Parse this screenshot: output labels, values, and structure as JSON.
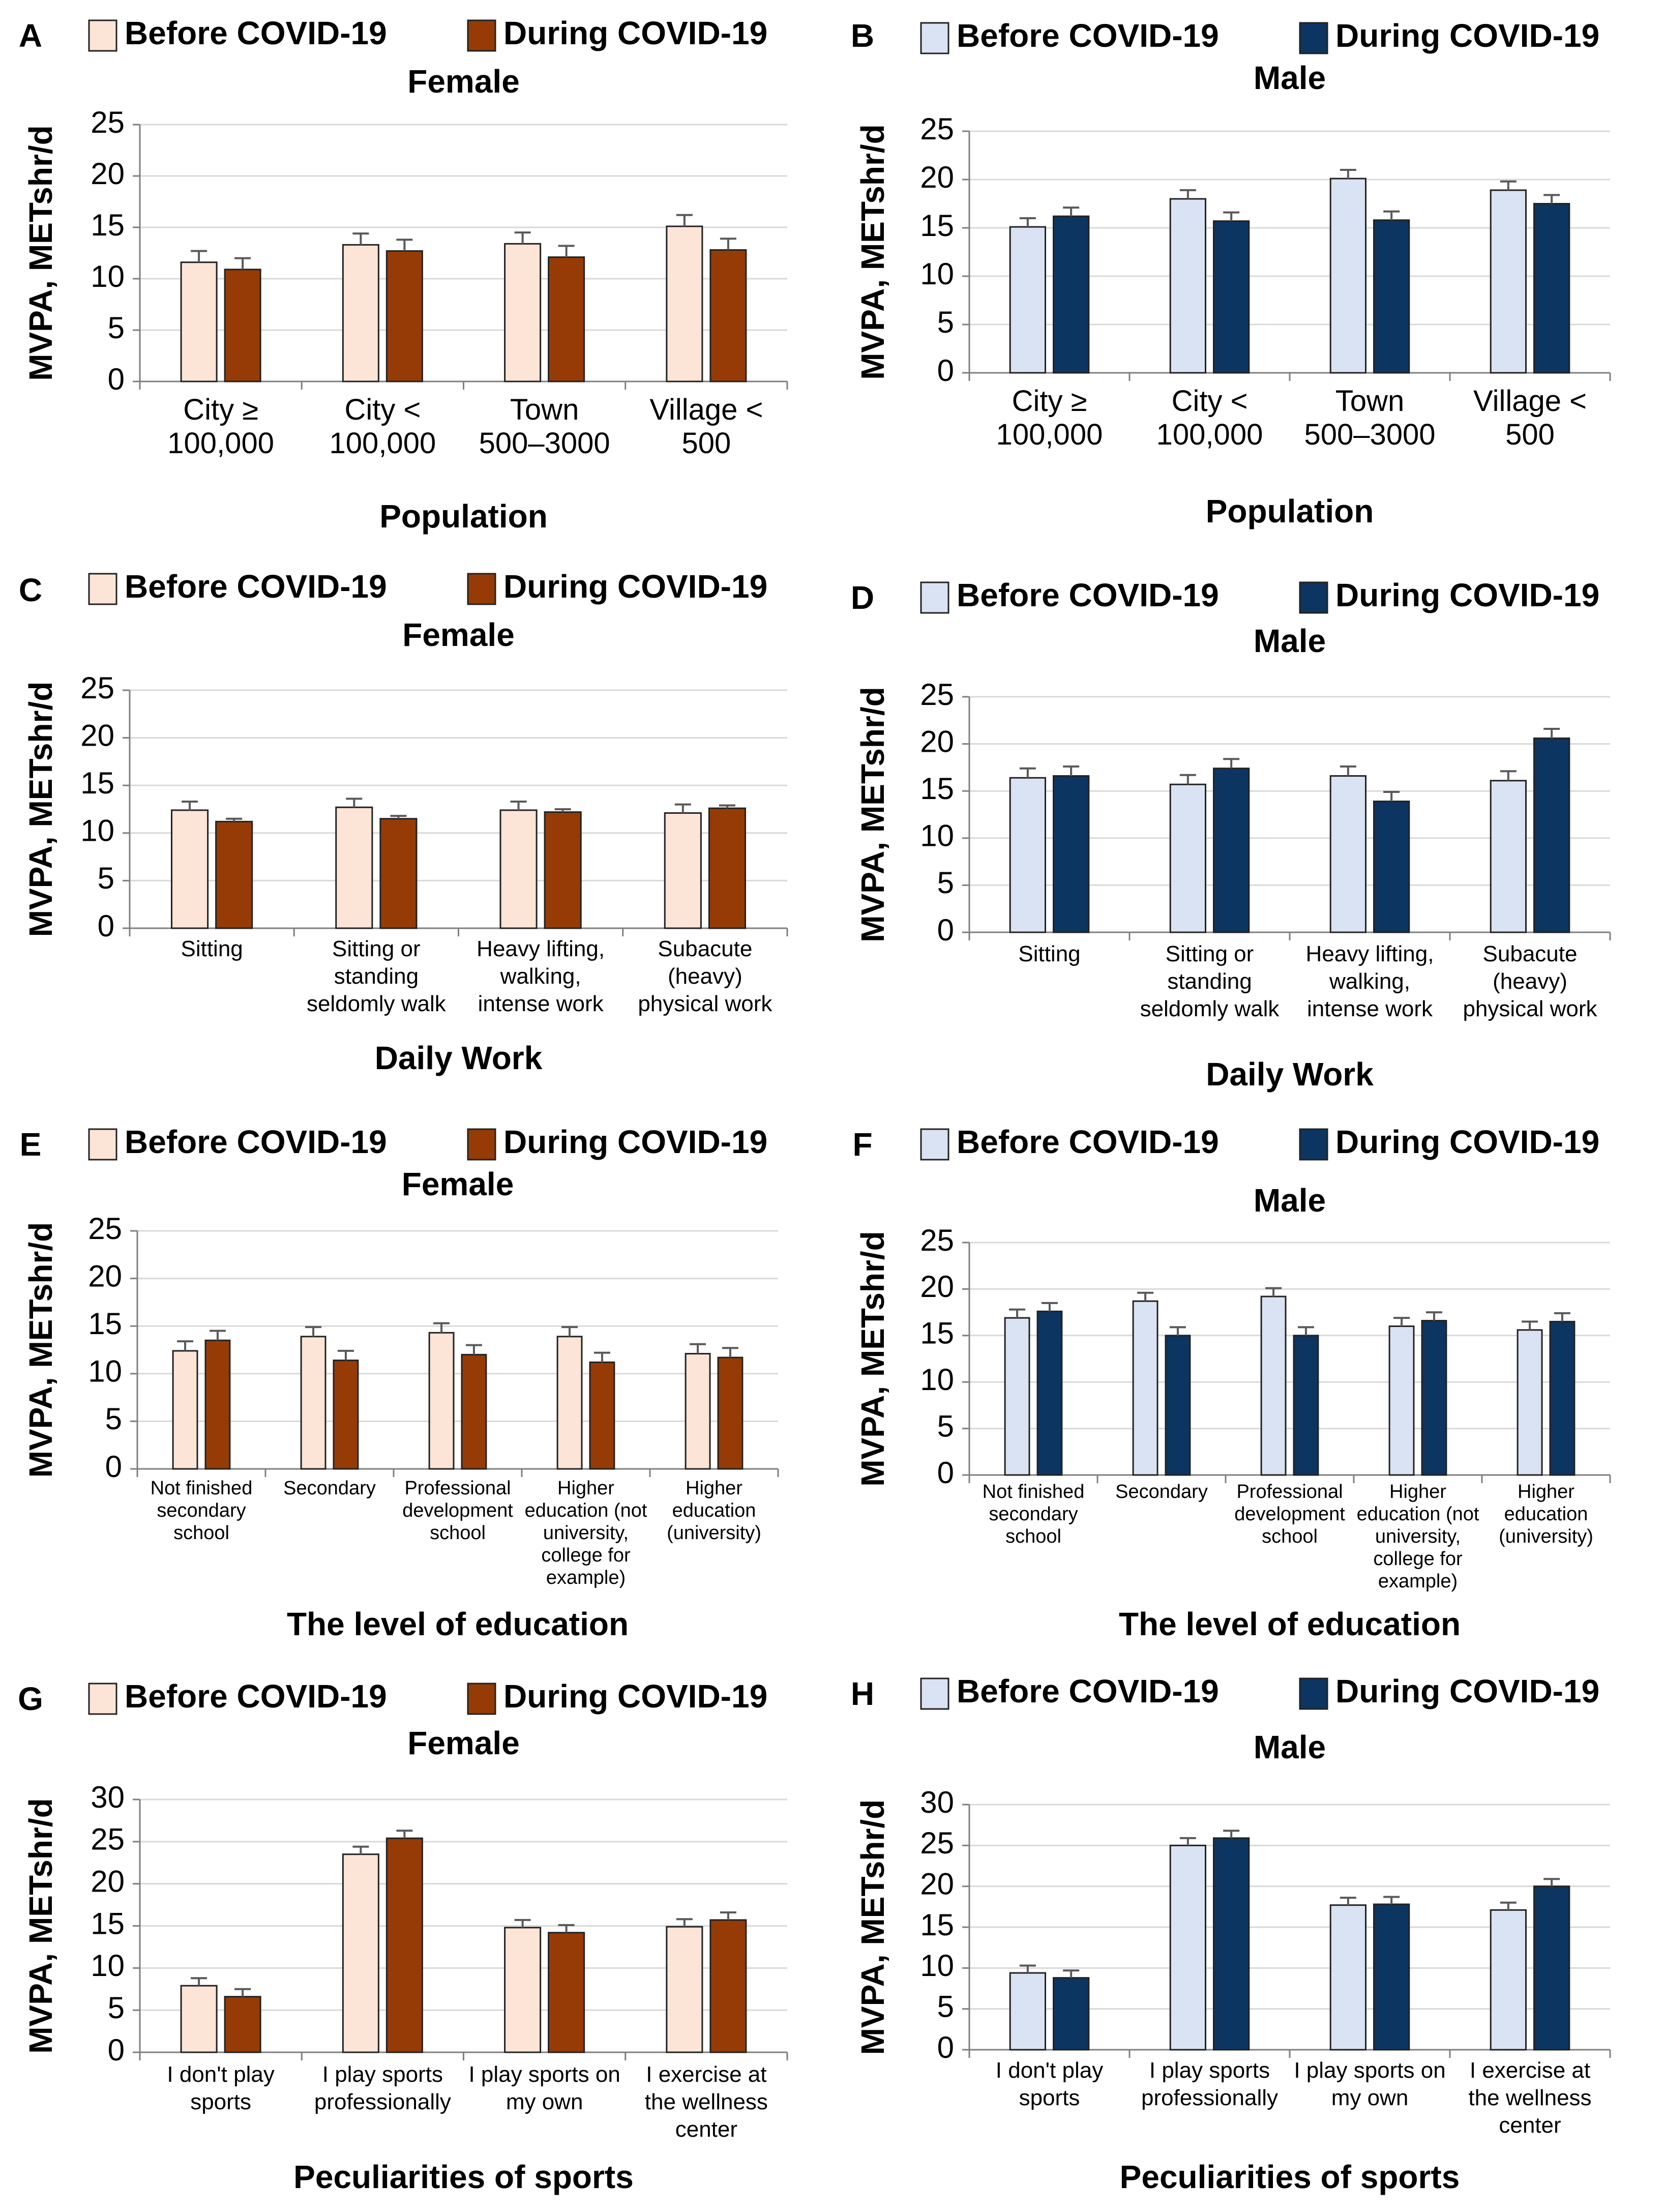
{
  "colors": {
    "female_before": "#fce4d6",
    "female_during": "#963b06",
    "male_before": "#dae3f3",
    "male_during": "#0c3561",
    "axis": "#7f7f7f",
    "grid": "#d9d9d9",
    "text": "#000000",
    "errorbar": "#595959"
  },
  "legend_before": "Before COVID-19",
  "legend_during": "During COVID-19",
  "chart_data": [
    {
      "panel": "A",
      "type": "bar",
      "title": "Female",
      "sex": "female",
      "xlabel": "Population",
      "ylabel": "MVPA, METshr/d",
      "ylim": [
        0,
        25
      ],
      "yticks": [
        0,
        5,
        10,
        15,
        20,
        25
      ],
      "categories": [
        [
          "City ≥",
          "100,000"
        ],
        [
          "City <",
          "100,000"
        ],
        [
          "Town",
          "500–3000"
        ],
        [
          "Village <",
          "500"
        ]
      ],
      "series": [
        {
          "name": "Before COVID-19",
          "values": [
            11.6,
            13.3,
            13.4,
            15.1
          ],
          "errors": [
            1.1,
            1.1,
            1.1,
            1.1
          ]
        },
        {
          "name": "During COVID-19",
          "values": [
            10.9,
            12.7,
            12.1,
            12.8
          ],
          "errors": [
            1.1,
            1.1,
            1.1,
            1.1
          ]
        }
      ]
    },
    {
      "panel": "B",
      "type": "bar",
      "title": "Male",
      "sex": "male",
      "xlabel": "Population",
      "ylabel": "MVPA, METshr/d",
      "ylim": [
        0,
        25
      ],
      "yticks": [
        0,
        5,
        10,
        15,
        20,
        25
      ],
      "categories": [
        [
          "City ≥",
          "100,000"
        ],
        [
          "City <",
          "100,000"
        ],
        [
          "Town",
          "500–3000"
        ],
        [
          "Village <",
          "500"
        ]
      ],
      "series": [
        {
          "name": "Before COVID-19",
          "values": [
            15.1,
            18.0,
            20.1,
            18.9
          ],
          "errors": [
            0.9,
            0.9,
            0.9,
            0.9
          ]
        },
        {
          "name": "During COVID-19",
          "values": [
            16.2,
            15.7,
            15.8,
            17.5
          ],
          "errors": [
            0.9,
            0.9,
            0.9,
            0.9
          ]
        }
      ]
    },
    {
      "panel": "C",
      "type": "bar",
      "title": "Female",
      "sex": "female",
      "xlabel": "Daily Work",
      "ylabel": "MVPA, METshr/d",
      "ylim": [
        0,
        25
      ],
      "yticks": [
        0,
        5,
        10,
        15,
        20,
        25
      ],
      "categories": [
        [
          "Sitting"
        ],
        [
          "Sitting or",
          "standing",
          "seldomly walk"
        ],
        [
          "Heavy lifting,",
          "walking,",
          "intense work"
        ],
        [
          "Subacute",
          "(heavy)",
          "physical work"
        ]
      ],
      "series": [
        {
          "name": "Before COVID-19",
          "values": [
            12.4,
            12.7,
            12.4,
            12.1
          ],
          "errors": [
            0.9,
            0.9,
            0.9,
            0.9
          ]
        },
        {
          "name": "During COVID-19",
          "values": [
            11.2,
            11.5,
            12.2,
            12.6
          ],
          "errors": [
            0.3,
            0.3,
            0.3,
            0.3
          ]
        }
      ]
    },
    {
      "panel": "D",
      "type": "bar",
      "title": "Male",
      "sex": "male",
      "xlabel": "Daily Work",
      "ylabel": "MVPA, METshr/d",
      "ylim": [
        0,
        25
      ],
      "yticks": [
        0,
        5,
        10,
        15,
        20,
        25
      ],
      "categories": [
        [
          "Sitting"
        ],
        [
          "Sitting or",
          "standing",
          "seldomly walk"
        ],
        [
          "Heavy lifting,",
          "walking,",
          "intense work"
        ],
        [
          "Subacute",
          "(heavy)",
          "physical work"
        ]
      ],
      "series": [
        {
          "name": "Before COVID-19",
          "values": [
            16.4,
            15.7,
            16.6,
            16.1
          ],
          "errors": [
            1.0,
            1.0,
            1.0,
            1.0
          ]
        },
        {
          "name": "During COVID-19",
          "values": [
            16.6,
            17.4,
            13.9,
            20.6
          ],
          "errors": [
            1.0,
            1.0,
            1.0,
            1.0
          ]
        }
      ]
    },
    {
      "panel": "E",
      "type": "bar",
      "title": "Female",
      "sex": "female",
      "xlabel": "The level of education",
      "ylabel": "MVPA, METshr/d",
      "ylim": [
        0,
        25
      ],
      "yticks": [
        0,
        5,
        10,
        15,
        20,
        25
      ],
      "categories": [
        [
          "Not finished",
          "secondary",
          "school"
        ],
        [
          "Secondary"
        ],
        [
          "Professional",
          "development",
          "school"
        ],
        [
          "Higher",
          "education (not",
          "university,",
          "college for",
          "example)"
        ],
        [
          "Higher",
          "education",
          "(university)"
        ]
      ],
      "series": [
        {
          "name": "Before COVID-19",
          "values": [
            12.4,
            13.9,
            14.3,
            13.9,
            12.1
          ],
          "errors": [
            1.0,
            1.0,
            1.0,
            1.0,
            1.0
          ]
        },
        {
          "name": "During COVID-19",
          "values": [
            13.5,
            11.4,
            12.0,
            11.2,
            11.7
          ],
          "errors": [
            1.0,
            1.0,
            1.0,
            1.0,
            1.0
          ]
        }
      ]
    },
    {
      "panel": "F",
      "type": "bar",
      "title": "Male",
      "sex": "male",
      "xlabel": "The level of education",
      "ylabel": "MVPA, METshr/d",
      "ylim": [
        0,
        25
      ],
      "yticks": [
        0,
        5,
        10,
        15,
        20,
        25
      ],
      "categories": [
        [
          "Not finished",
          "secondary",
          "school"
        ],
        [
          "Secondary"
        ],
        [
          "Professional",
          "development",
          "school"
        ],
        [
          "Higher",
          "education (not",
          "university,",
          "college for",
          "example)"
        ],
        [
          "Higher",
          "education",
          "(university)"
        ]
      ],
      "series": [
        {
          "name": "Before COVID-19",
          "values": [
            16.9,
            18.7,
            19.2,
            16.0,
            15.6
          ],
          "errors": [
            0.9,
            0.9,
            0.9,
            0.9,
            0.9
          ]
        },
        {
          "name": "During COVID-19",
          "values": [
            17.6,
            15.0,
            15.0,
            16.6,
            16.5
          ],
          "errors": [
            0.9,
            0.9,
            0.9,
            0.9,
            0.9
          ]
        }
      ]
    },
    {
      "panel": "G",
      "type": "bar",
      "title": "Female",
      "sex": "female",
      "xlabel": "Peculiarities of sports",
      "ylabel": "MVPA, METshr/d",
      "ylim": [
        0,
        30
      ],
      "yticks": [
        0,
        5,
        10,
        15,
        20,
        25,
        30
      ],
      "categories": [
        [
          "I don't play",
          "sports"
        ],
        [
          "I play sports",
          "professionally"
        ],
        [
          "I play sports on",
          "my own"
        ],
        [
          "I exercise at",
          "the wellness",
          "center"
        ]
      ],
      "series": [
        {
          "name": "Before COVID-19",
          "values": [
            7.9,
            23.5,
            14.8,
            14.9
          ],
          "errors": [
            0.9,
            0.9,
            0.9,
            0.9
          ]
        },
        {
          "name": "During COVID-19",
          "values": [
            6.6,
            25.4,
            14.2,
            15.7
          ],
          "errors": [
            0.9,
            0.9,
            0.9,
            0.9
          ]
        }
      ]
    },
    {
      "panel": "H",
      "type": "bar",
      "title": "Male",
      "sex": "male",
      "xlabel": "Peculiarities of sports",
      "ylabel": "MVPA, METshr/d",
      "ylim": [
        0,
        30
      ],
      "yticks": [
        0,
        5,
        10,
        15,
        20,
        25,
        30
      ],
      "categories": [
        [
          "I don't play",
          "sports"
        ],
        [
          "I play sports",
          "professionally"
        ],
        [
          "I play sports on",
          "my own"
        ],
        [
          "I exercise at",
          "the wellness",
          "center"
        ]
      ],
      "series": [
        {
          "name": "Before COVID-19",
          "values": [
            9.4,
            25.0,
            17.7,
            17.1
          ],
          "errors": [
            0.9,
            0.9,
            0.9,
            0.9
          ]
        },
        {
          "name": "During COVID-19",
          "values": [
            8.8,
            25.9,
            17.8,
            20.0
          ],
          "errors": [
            0.9,
            0.9,
            0.9,
            0.9
          ]
        }
      ]
    }
  ]
}
